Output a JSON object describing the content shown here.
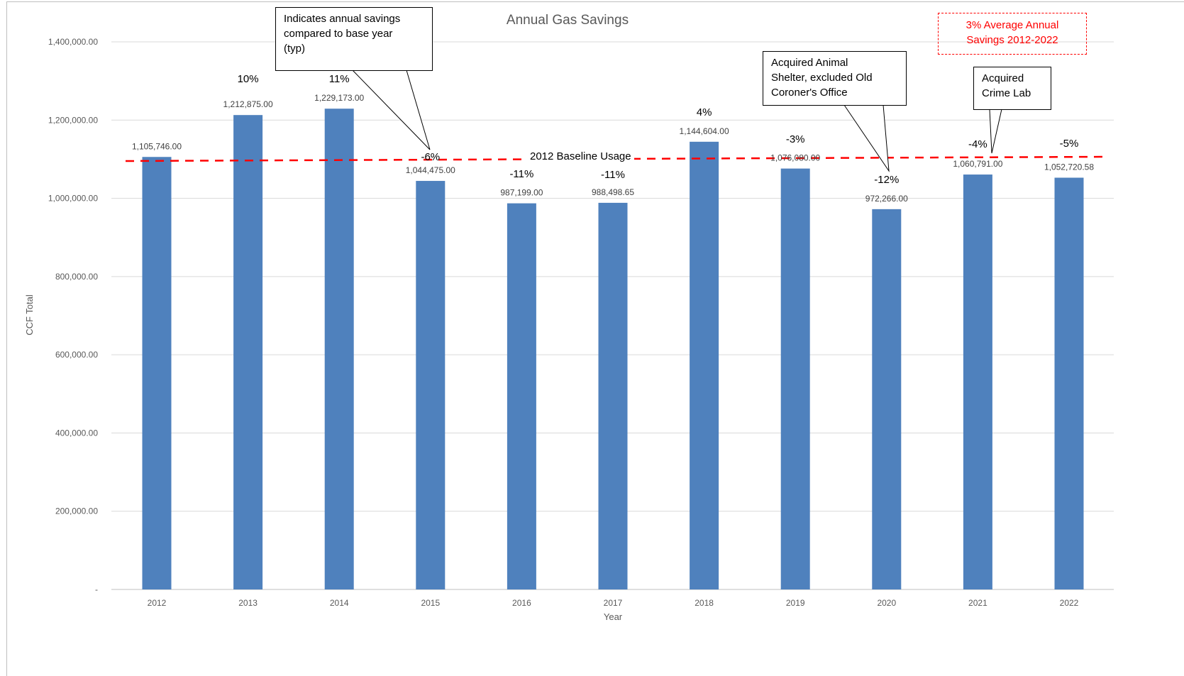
{
  "chart_data": {
    "type": "bar",
    "title": "Annual Gas Savings",
    "xlabel": "Year",
    "ylabel": "CCF Total",
    "ylim": [
      0,
      1400000
    ],
    "y_ticks": [
      "-",
      "200,000.00",
      "400,000.00",
      "600,000.00",
      "800,000.00",
      "1,000,000.00",
      "1,200,000.00",
      "1,400,000.00"
    ],
    "grid": "horizontal",
    "categories": [
      "2012",
      "2013",
      "2014",
      "2015",
      "2016",
      "2017",
      "2018",
      "2019",
      "2020",
      "2021",
      "2022"
    ],
    "values": [
      1105746.0,
      1212875.0,
      1229173.0,
      1044475.0,
      987199.0,
      988498.65,
      1144604.0,
      1076080.0,
      972266.0,
      1060791.0,
      1052720.58
    ],
    "value_labels": [
      "1,105,746.00",
      "1,212,875.00",
      "1,229,173.00",
      "1,044,475.00",
      "987,199.00",
      "988,498.65",
      "1,144,604.00",
      "1,076,080.00",
      "972,266.00",
      "1,060,791.00",
      "1,052,720.58"
    ],
    "savings_labels": [
      "",
      "10%",
      "11%",
      "-6%",
      "-11%",
      "-11%",
      "4%",
      "-3%",
      "-12%",
      "-4%",
      "-5%"
    ],
    "bar_color": "#4f81bd",
    "baseline": {
      "label": "2012 Baseline Usage",
      "value": 1105746.0,
      "color": "#ff0000",
      "style": "dashed"
    },
    "annotations": [
      {
        "text": "Indicates  annual savings\ncompared to base year\n(typ)",
        "points_to": "2015"
      },
      {
        "text": "Acquired Animal\nShelter, excluded Old\nCoroner's Office",
        "points_to": "2020"
      },
      {
        "text": "Acquired\nCrime Lab",
        "points_to": "2021"
      },
      {
        "text": "3% Average Annual\nSavings 2012-2022",
        "color": "#ff0000",
        "style": "dash-dot box"
      }
    ]
  }
}
